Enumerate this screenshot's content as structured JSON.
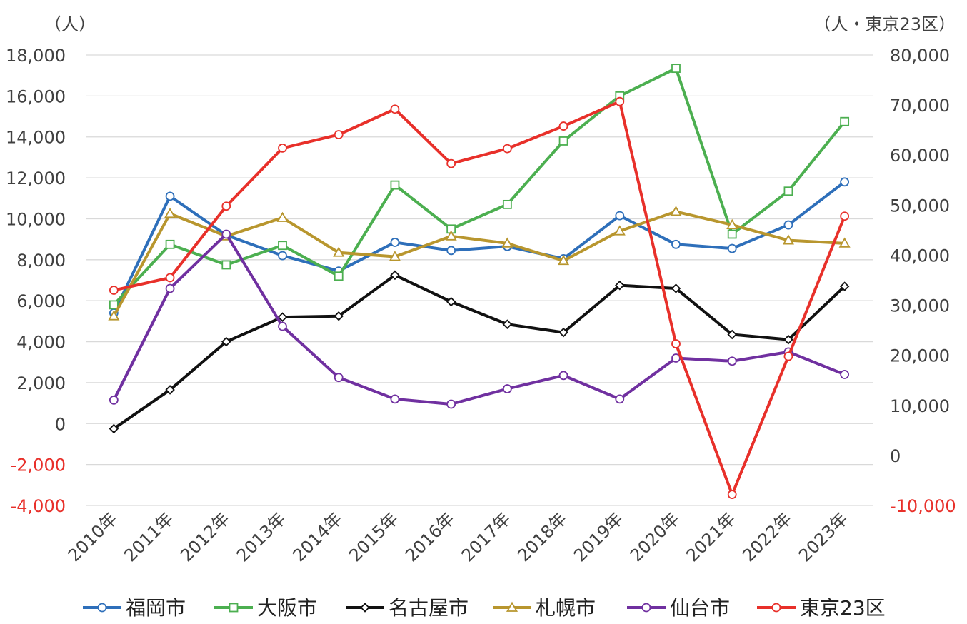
{
  "chart_data": {
    "type": "line",
    "left_unit": "（人）",
    "right_unit": "（人・東京23区）",
    "categories": [
      "2010年",
      "2011年",
      "2012年",
      "2013年",
      "2014年",
      "2015年",
      "2016年",
      "2017年",
      "2018年",
      "2019年",
      "2020年",
      "2021年",
      "2022年",
      "2023年"
    ],
    "ylim_left": [
      -4000,
      18000
    ],
    "ylim_right": [
      -10000,
      80000
    ],
    "left_ticks": [
      "18,000",
      "16,000",
      "14,000",
      "12,000",
      "10,000",
      "8,000",
      "6,000",
      "4,000",
      "2,000",
      "0",
      "-2,000",
      "-4,000"
    ],
    "right_ticks": [
      "80,000",
      "70,000",
      "60,000",
      "50,000",
      "40,000",
      "30,000",
      "20,000",
      "10,000",
      "0",
      "-10,000"
    ],
    "negative_tick_color": "#e8302a",
    "grid": true,
    "legend_position": "bottom",
    "series": [
      {
        "name": "福岡市",
        "axis": "left",
        "color": "#2e6fba",
        "marker": "circle",
        "values": [
          5400,
          11100,
          9200,
          8200,
          7450,
          8850,
          8450,
          8650,
          8050,
          10150,
          8750,
          8550,
          9700,
          11800
        ]
      },
      {
        "name": "大阪市",
        "axis": "left",
        "color": "#4caf50",
        "marker": "square",
        "values": [
          5800,
          8750,
          7750,
          8700,
          7200,
          11650,
          9500,
          10700,
          13800,
          16000,
          17350,
          9250,
          11350,
          14750
        ]
      },
      {
        "name": "名古屋市",
        "axis": "left",
        "color": "#111111",
        "marker": "diamond",
        "values": [
          -250,
          1650,
          4000,
          5200,
          5250,
          7250,
          5950,
          4850,
          4450,
          6750,
          6600,
          4350,
          4100,
          6700
        ]
      },
      {
        "name": "札幌市",
        "axis": "left",
        "color": "#b8962e",
        "marker": "triangle",
        "values": [
          5250,
          10250,
          9150,
          10050,
          8350,
          8150,
          9150,
          8800,
          7950,
          9400,
          10350,
          9700,
          8950,
          8800
        ]
      },
      {
        "name": "仙台市",
        "axis": "left",
        "color": "#7030a0",
        "marker": "circle",
        "values": [
          1150,
          6600,
          9250,
          4750,
          2250,
          1200,
          950,
          1700,
          2350,
          1200,
          3200,
          3050,
          3500,
          2400
        ]
      },
      {
        "name": "東京23区",
        "axis": "right",
        "color": "#e8302a",
        "marker": "circle",
        "values": [
          33000,
          35500,
          49800,
          61400,
          64100,
          69200,
          58300,
          61300,
          65800,
          70700,
          22300,
          -7800,
          19800,
          47800
        ]
      }
    ]
  }
}
